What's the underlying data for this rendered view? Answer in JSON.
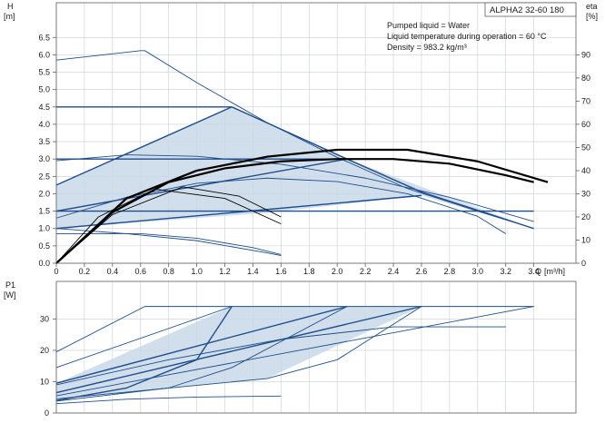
{
  "colors": {
    "curve": "#1f4e8c",
    "area": "#c9d8e8",
    "area_stroke": "#1f4e8c",
    "grid": "#c9ced6",
    "frame": "#5b5f66",
    "text": "#1a1a1a",
    "operating": "#000000"
  },
  "chart_data": [
    {
      "type": "line",
      "title": "ALPHA2 32-60 180",
      "annotations": [
        "Pumped liquid = Water",
        "Liquid temperature during operation = 60 °C",
        "Density = 983.2 kg/m³"
      ],
      "ylabel": "H",
      "yunit": "[m]",
      "y2label": "eta",
      "y2unit": "[%]",
      "xlabel": "Q",
      "xunit": "[m³/h]",
      "xlim": [
        0,
        3.7
      ],
      "ylim": [
        0,
        7.5
      ],
      "y2lim": [
        0,
        112.5
      ],
      "x_ticks": [
        "0",
        "0.2",
        "0.4",
        "0.6",
        "0.8",
        "1.0",
        "1.2",
        "1.4",
        "1.6",
        "1.8",
        "2.0",
        "2.2",
        "2.4",
        "2.6",
        "2.8",
        "3.0",
        "3.2",
        "3.4"
      ],
      "y_ticks": [
        "0.0",
        "0.5",
        "1.0",
        "1.5",
        "2.0",
        "2.5",
        "3.0",
        "3.5",
        "4.0",
        "4.5",
        "5.0",
        "5.5",
        "6.0",
        "6.5"
      ],
      "y2_ticks": [
        "0",
        "10",
        "20",
        "30",
        "40",
        "50",
        "60",
        "70",
        "80",
        "90"
      ],
      "grid": true,
      "shaded_area": [
        [
          0,
          2.25
        ],
        [
          1.25,
          4.5
        ],
        [
          2.07,
          3.0
        ],
        [
          3.4,
          1.0
        ],
        [
          2.6,
          1.95
        ],
        [
          1.5,
          1.45
        ],
        [
          0,
          1.0
        ]
      ],
      "series": [
        {
          "x": [
            0,
            0.6,
            0.63,
            1.0,
            1.5,
            2.0,
            2.5,
            3.0,
            3.4
          ],
          "y": [
            5.85,
            6.12,
            6.12,
            5.2,
            4.05,
            3.05,
            2.15,
            1.5,
            1.0
          ]
        },
        {
          "x": [
            0,
            1.25
          ],
          "y": [
            4.5,
            4.5
          ]
        },
        {
          "x": [
            0,
            2.07
          ],
          "y": [
            3.0,
            3.0
          ]
        },
        {
          "x": [
            0,
            3.4
          ],
          "y": [
            1.5,
            1.5
          ]
        },
        {
          "x": [
            0,
            1.25
          ],
          "y": [
            2.25,
            4.5
          ]
        },
        {
          "x": [
            0,
            2.07
          ],
          "y": [
            1.5,
            3.0
          ]
        },
        {
          "x": [
            0,
            2.6
          ],
          "y": [
            1.0,
            1.95
          ]
        },
        {
          "x": [
            1.25,
            2.07,
            2.6,
            3.4
          ],
          "y": [
            4.5,
            3.0,
            2.05,
            1.0
          ]
        },
        {
          "x": [
            0,
            0.5,
            1.0,
            1.6,
            2.2,
            2.8,
            3.4
          ],
          "y": [
            2.95,
            3.12,
            3.08,
            2.85,
            2.45,
            1.9,
            1.2
          ]
        },
        {
          "x": [
            0,
            0.5,
            1.0,
            1.5,
            2.0,
            2.5,
            3.0,
            3.2
          ],
          "y": [
            1.3,
            1.9,
            2.3,
            2.45,
            2.35,
            2.0,
            1.35,
            0.85
          ]
        },
        {
          "x": [
            0,
            0.6,
            1.0,
            1.4,
            1.6
          ],
          "y": [
            0.85,
            0.85,
            0.72,
            0.45,
            0.25
          ]
        },
        {
          "x": [
            0,
            0.5,
            1.0,
            1.5,
            1.6
          ],
          "y": [
            1.0,
            0.85,
            0.65,
            0.3,
            0.22
          ]
        }
      ],
      "efficiency_curves": [
        {
          "x": [
            0,
            0.3,
            0.7,
            1.2,
            1.6
          ],
          "y": [
            0,
            20,
            32,
            28,
            17
          ]
        },
        {
          "x": [
            0,
            0.4,
            0.9,
            1.3,
            1.6
          ],
          "y": [
            0,
            21,
            33,
            29,
            20
          ]
        },
        {
          "x": [
            0,
            0.4,
            0.8,
            1.2,
            1.6,
            2.0,
            2.4,
            2.8,
            3.2,
            3.4
          ],
          "y": [
            0,
            22,
            35,
            41,
            44,
            45,
            45,
            43,
            38,
            35
          ]
        },
        {
          "x": [
            0,
            0.5,
            1.0,
            1.5,
            2.0,
            2.5,
            3.0,
            3.5
          ],
          "y": [
            0,
            28,
            40,
            46,
            49,
            49,
            44,
            35
          ]
        }
      ]
    },
    {
      "type": "line",
      "ylabel": "P1",
      "yunit": "[W]",
      "xlim": [
        0,
        3.7
      ],
      "ylim": [
        0,
        42
      ],
      "y_ticks": [
        "0",
        "10",
        "20",
        "30"
      ],
      "grid": true,
      "shaded_area": [
        [
          0,
          9.5
        ],
        [
          1.25,
          34
        ],
        [
          2.07,
          34
        ],
        [
          2.6,
          34
        ],
        [
          1.5,
          11
        ],
        [
          0,
          4.5
        ]
      ],
      "series": [
        {
          "x": [
            0,
            0.63,
            3.4
          ],
          "y": [
            19.5,
            34,
            34
          ]
        },
        {
          "x": [
            0,
            1.25
          ],
          "y": [
            14.5,
            34
          ]
        },
        {
          "x": [
            0,
            2.07
          ],
          "y": [
            9.5,
            34
          ]
        },
        {
          "x": [
            0,
            2.6
          ],
          "y": [
            6.5,
            34
          ]
        },
        {
          "x": [
            0,
            3.4
          ],
          "y": [
            5.5,
            34
          ]
        },
        {
          "x": [
            0,
            0.5,
            1.0,
            1.25
          ],
          "y": [
            4.0,
            8.0,
            17.0,
            34
          ]
        },
        {
          "x": [
            0,
            0.8,
            1.25,
            2.07
          ],
          "y": [
            3.8,
            8.0,
            14.5,
            34
          ]
        },
        {
          "x": [
            0,
            1.5,
            2.0,
            2.6
          ],
          "y": [
            4.5,
            11.0,
            17.0,
            34
          ]
        },
        {
          "x": [
            0,
            0.8,
            1.6,
            2.4,
            3.2
          ],
          "y": [
            9.0,
            17.0,
            23.5,
            27.5,
            27.5
          ]
        },
        {
          "x": [
            0,
            0.5,
            1.0,
            1.6
          ],
          "y": [
            3.0,
            4.4,
            5.1,
            5.4
          ]
        }
      ]
    }
  ]
}
